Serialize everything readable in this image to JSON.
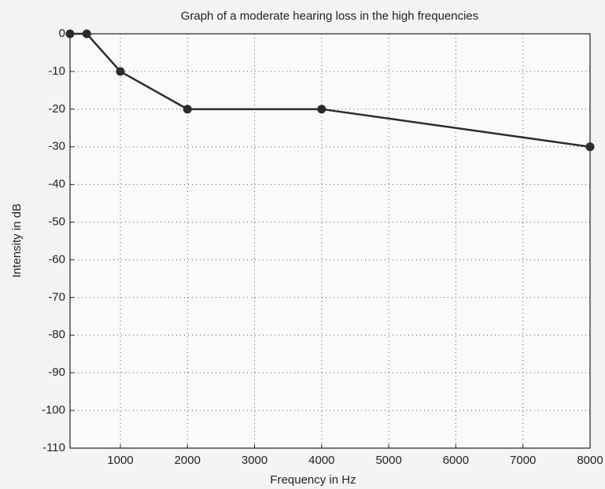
{
  "chart_data": {
    "type": "line",
    "title": "Graph of a moderate hearing loss in the high frequencies",
    "x_label": "Frequency in Hz",
    "y_label": "Intensity in dB",
    "x": [
      250,
      500,
      1000,
      2000,
      4000,
      8000
    ],
    "series": [
      {
        "color": "#2b2b2b",
        "values": [
          0,
          0,
          -10,
          -20,
          -20,
          -30
        ]
      }
    ],
    "xlim": [
      250,
      8000
    ],
    "xticks": [
      1000,
      2000,
      3000,
      4000,
      5000,
      6000,
      7000,
      8000
    ],
    "ylim": [
      -110,
      0
    ],
    "yticks": [
      -110,
      -100,
      -90,
      -80,
      -70,
      -60,
      -50,
      -40,
      -30,
      -20,
      -10,
      0
    ],
    "grid": true
  }
}
